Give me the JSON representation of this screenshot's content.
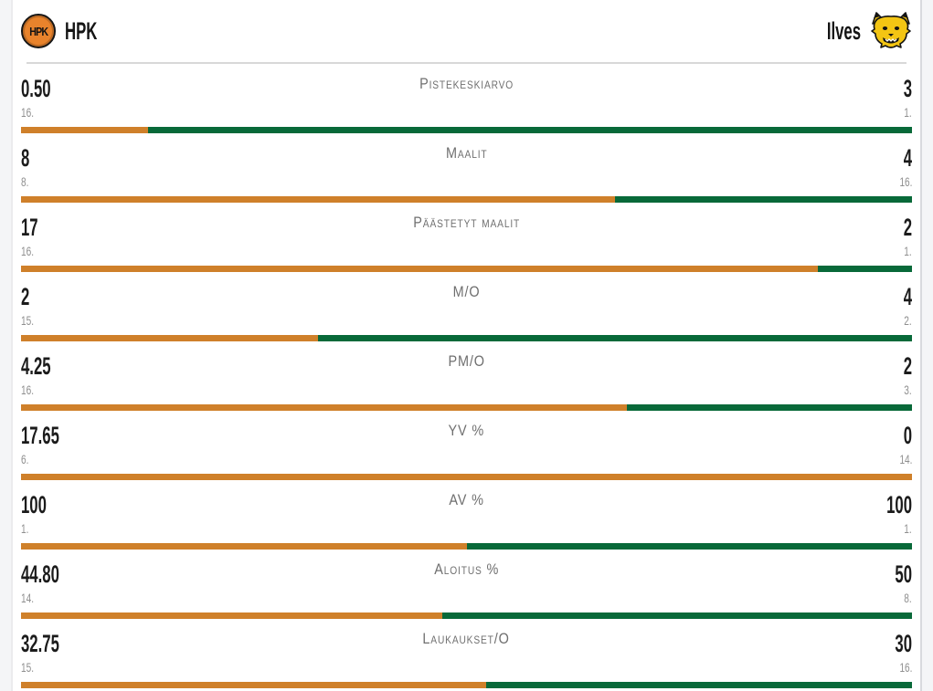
{
  "header": {
    "home": {
      "name": "HPK",
      "logo_text": "HPK",
      "logo_icon": "hpk-crest-logo"
    },
    "away": {
      "name": "Ilves",
      "logo_icon": "ilves-lynx-logo"
    }
  },
  "colors": {
    "home_bar": "#CF802A",
    "away_bar": "#086939",
    "hpk_logo": "#E8832C",
    "ilves_logo": "#F3C513"
  },
  "stats": [
    {
      "label": "Pistekeskiarvo",
      "home_value": "0.50",
      "home_rank": "16.",
      "away_value": "3",
      "away_rank": "1."
    },
    {
      "label": "Maalit",
      "home_value": "8",
      "home_rank": "8.",
      "away_value": "4",
      "away_rank": "16."
    },
    {
      "label": "Päästetyt maalit",
      "home_value": "17",
      "home_rank": "16.",
      "away_value": "2",
      "away_rank": "1."
    },
    {
      "label": "M/O",
      "home_value": "2",
      "home_rank": "15.",
      "away_value": "4",
      "away_rank": "2."
    },
    {
      "label": "PM/O",
      "home_value": "4.25",
      "home_rank": "16.",
      "away_value": "2",
      "away_rank": "3."
    },
    {
      "label": "YV %",
      "home_value": "17.65",
      "home_rank": "6.",
      "away_value": "0",
      "away_rank": "14."
    },
    {
      "label": "AV %",
      "home_value": "100",
      "home_rank": "1.",
      "away_value": "100",
      "away_rank": "1."
    },
    {
      "label": "Aloitus %",
      "home_value": "44.80",
      "home_rank": "14.",
      "away_value": "50",
      "away_rank": "8."
    },
    {
      "label": "Laukaukset/O",
      "home_value": "32.75",
      "home_rank": "15.",
      "away_value": "30",
      "away_rank": "16."
    }
  ]
}
